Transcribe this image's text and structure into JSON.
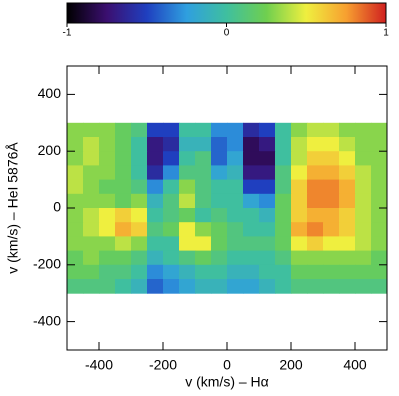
{
  "chart_data": {
    "type": "heatmap",
    "xlabel": "v (km/s) – Hα",
    "ylabel": "v (km/s) – HeI 5876Å",
    "xlim": [
      -500,
      500
    ],
    "ylim": [
      -500,
      500
    ],
    "xticks": [
      -400,
      -200,
      0,
      200,
      400
    ],
    "yticks": [
      -400,
      -200,
      0,
      200,
      400
    ],
    "x": [
      -475,
      -425,
      -375,
      -325,
      -275,
      -225,
      -175,
      -125,
      -75,
      -25,
      25,
      75,
      125,
      175,
      225,
      275,
      325,
      375,
      425,
      475
    ],
    "y": [
      275,
      225,
      175,
      125,
      75,
      25,
      -25,
      -75,
      -125,
      -175,
      -225,
      -275
    ],
    "z": [
      [
        0.3,
        0.3,
        0.3,
        0.2,
        0.1,
        -0.5,
        -0.5,
        0,
        0,
        -0.3,
        -0.3,
        -0.6,
        -0.5,
        0,
        0.3,
        0.4,
        0.4,
        0.3,
        0.3,
        0.3
      ],
      [
        0.3,
        0.4,
        0.3,
        0.2,
        0,
        -0.7,
        -0.6,
        -0.1,
        -0.1,
        -0.4,
        -0.3,
        -0.8,
        -0.7,
        0,
        0.4,
        0.5,
        0.5,
        0.4,
        0.3,
        0.3
      ],
      [
        0.3,
        0.4,
        0.3,
        0.2,
        0,
        -0.7,
        -0.5,
        0,
        0.1,
        -0.4,
        -0.2,
        -0.8,
        -0.8,
        0,
        0.4,
        0.6,
        0.6,
        0.5,
        0.3,
        0.3
      ],
      [
        0.4,
        0.3,
        0.3,
        0.2,
        0,
        -0.6,
        -0.3,
        0.1,
        0.1,
        -0.2,
        -0.1,
        -0.7,
        -0.7,
        0.1,
        0.5,
        0.7,
        0.7,
        0.6,
        0.4,
        0.3
      ],
      [
        0.4,
        0.3,
        0.2,
        0.2,
        0.1,
        -0.3,
        0,
        0.3,
        0.1,
        0,
        0,
        -0.5,
        -0.5,
        0.1,
        0.6,
        0.8,
        0.8,
        0.7,
        0.4,
        0.3
      ],
      [
        0.3,
        0.3,
        0.3,
        0.2,
        0.3,
        -0.1,
        0.1,
        0.4,
        0.1,
        0,
        0,
        -0.2,
        -0.3,
        0.2,
        0.6,
        0.8,
        0.8,
        0.7,
        0.4,
        0.3
      ],
      [
        0.3,
        0.4,
        0.5,
        0.6,
        0.5,
        0,
        0.1,
        0.2,
        0,
        0.1,
        0,
        0,
        -0.1,
        0.2,
        0.6,
        0.7,
        0.7,
        0.6,
        0.4,
        0.3
      ],
      [
        0.3,
        0.4,
        0.5,
        0.7,
        0.6,
        0.1,
        0.2,
        0.5,
        0.3,
        0.2,
        0.1,
        0,
        0,
        0.2,
        0.7,
        0.8,
        0.7,
        0.6,
        0.4,
        0.3
      ],
      [
        0.3,
        0.3,
        0.3,
        0.4,
        0.3,
        0,
        0,
        0.5,
        0.5,
        0.2,
        0.1,
        0.1,
        0.1,
        0.2,
        0.5,
        0.6,
        0.5,
        0.5,
        0.4,
        0.3
      ],
      [
        0.2,
        0.3,
        0.2,
        0.2,
        0.1,
        -0.1,
        0,
        0.1,
        0.2,
        0.1,
        0,
        0,
        0,
        0.1,
        0.3,
        0.3,
        0.3,
        0.3,
        0.3,
        0.2
      ],
      [
        0.2,
        0.2,
        0.1,
        0.1,
        0,
        -0.3,
        -0.2,
        -0.1,
        0,
        0,
        -0.1,
        -0.1,
        0,
        0,
        0.2,
        0.2,
        0.2,
        0.2,
        0.2,
        0.2
      ],
      [
        0.1,
        0.1,
        0.1,
        0,
        -0.1,
        -0.4,
        -0.3,
        -0.2,
        -0.1,
        -0.1,
        -0.2,
        -0.2,
        -0.1,
        0,
        0.1,
        0.1,
        0.1,
        0.1,
        0.1,
        0.1
      ]
    ],
    "colorscale": [
      "#000000",
      "#3b0f70",
      "#1f3fbf",
      "#2f9fdf",
      "#3fbf9f",
      "#6fcf4f",
      "#efef3f",
      "#f7a030",
      "#d02020"
    ],
    "colorbar": {
      "lim": [
        -1,
        1
      ],
      "ticks": [
        -1,
        0,
        1
      ]
    }
  }
}
